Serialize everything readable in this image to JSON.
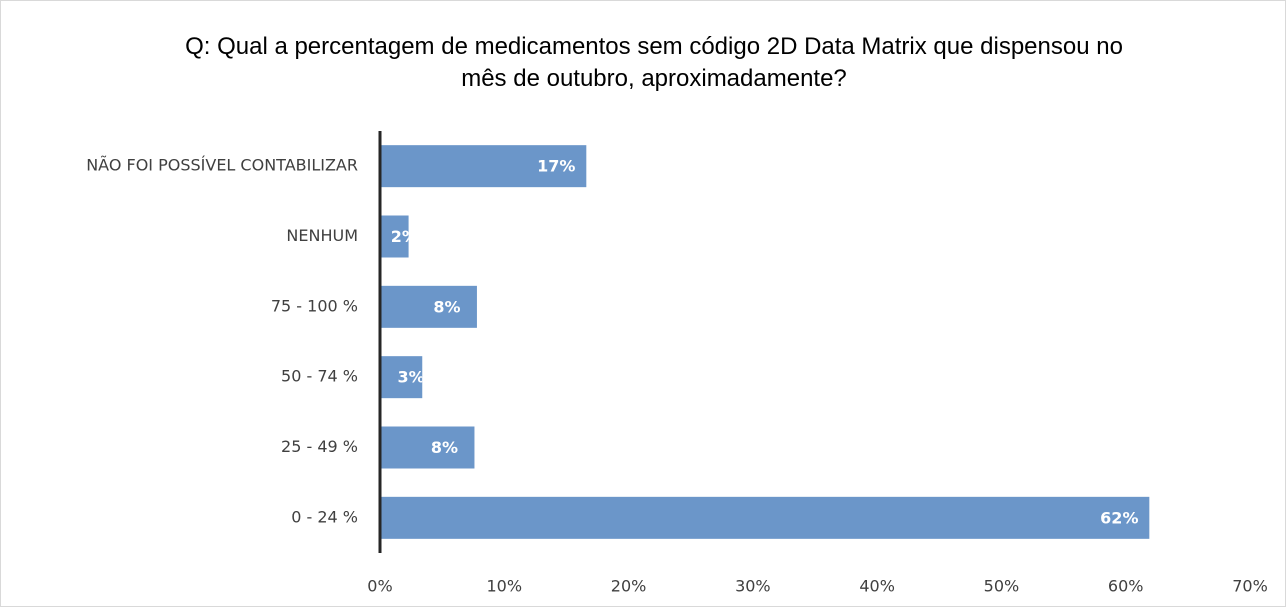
{
  "chart_data": {
    "type": "bar",
    "orientation": "horizontal",
    "title": "Q: Qual a percentagem de medicamentos sem código 2D Data Matrix que dispensou no mês de outubro, aproximadamente?",
    "categories": [
      "NÃO FOI POSSÍVEL CONTABILIZAR",
      "NENHUM",
      "75 - 100 %",
      "50 - 74 %",
      "25 - 49 %",
      "0 - 24 %"
    ],
    "values": [
      16.6,
      2.3,
      7.8,
      3.4,
      7.6,
      61.9
    ],
    "value_labels": [
      "17%",
      "2%",
      "8%",
      "3%",
      "8%",
      "62%"
    ],
    "color": "#6b96c9",
    "xlim": [
      0,
      70
    ],
    "xticks": [
      {
        "value": 0,
        "label": "0%"
      },
      {
        "value": 10,
        "label": "10%"
      },
      {
        "value": 20,
        "label": "20%"
      },
      {
        "value": 30,
        "label": "30%"
      },
      {
        "value": 40,
        "label": "40%"
      },
      {
        "value": 50,
        "label": "50%"
      },
      {
        "value": 60,
        "label": "60%"
      },
      {
        "value": 70,
        "label": "70%"
      }
    ],
    "grid": false
  }
}
